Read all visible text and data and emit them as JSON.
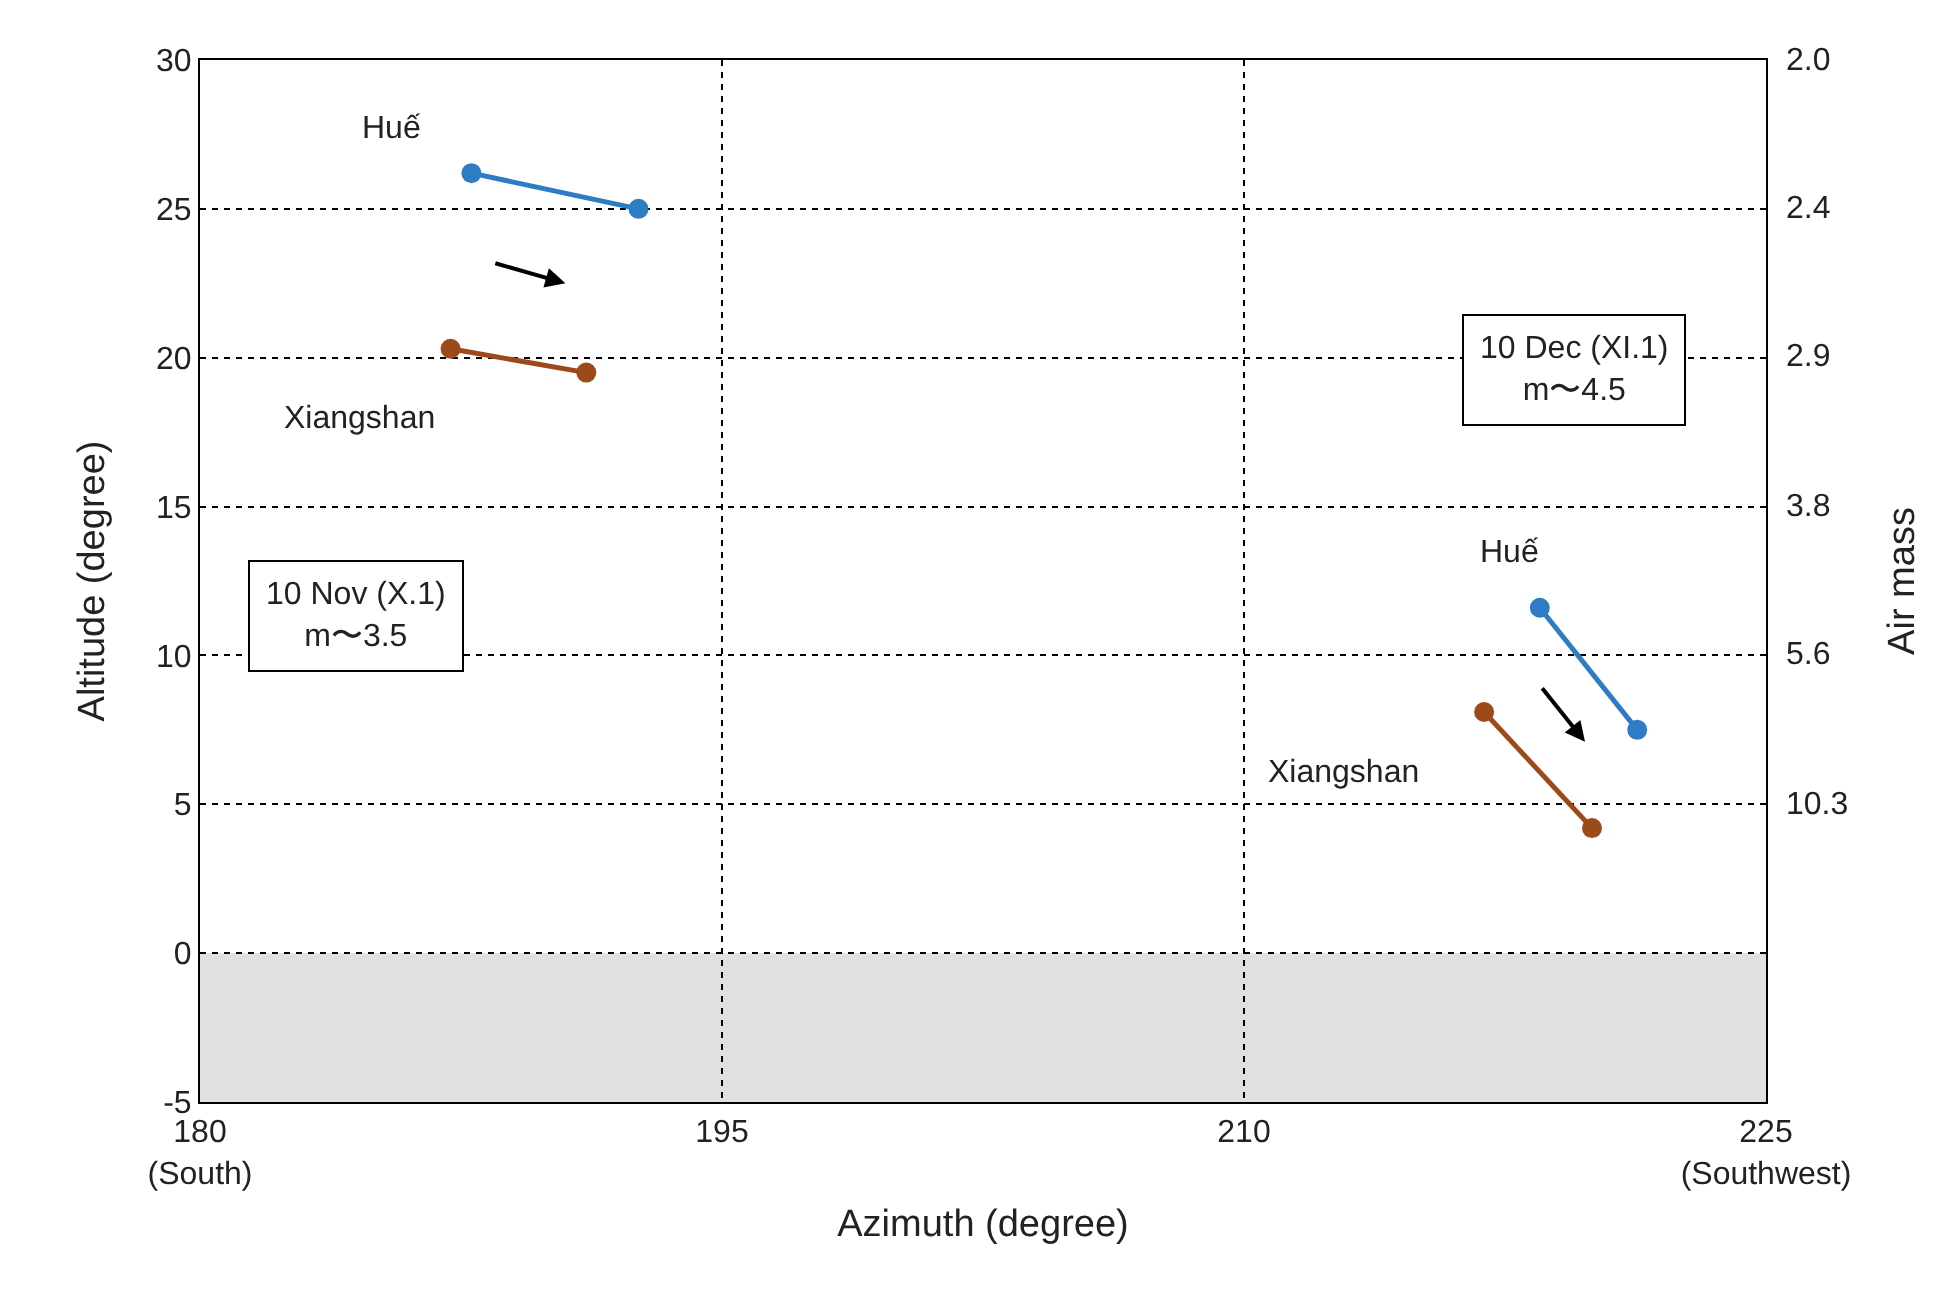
{
  "chart_data": {
    "type": "line",
    "xlabel": "Azimuth (degree)",
    "ylabel": "Altitude (degree)",
    "y2label": "Air mass",
    "xlim": [
      180,
      225
    ],
    "xticks": [
      {
        "value": 180,
        "label": "180\n(South)"
      },
      195,
      210,
      {
        "value": 225,
        "label": "225\n(Southwest)"
      }
    ],
    "ylim": [
      -5,
      30
    ],
    "yticks": [
      -5,
      0,
      5,
      10,
      15,
      20,
      25,
      30
    ],
    "grid": true,
    "legend": false,
    "marker": "circle",
    "line_style": "solid",
    "bands": [
      {
        "axis": "y",
        "from": -5,
        "to": 0,
        "color": "#e0e0e0"
      }
    ],
    "series": [
      {
        "name": "Huế",
        "color": "#2e7dc4",
        "x": [
          187.8,
          192.6
        ],
        "values": [
          26.2,
          25.0
        ]
      },
      {
        "name": "Xiangshan",
        "color": "#9c4a1a",
        "x": [
          187.2,
          191.1
        ],
        "values": [
          20.3,
          19.5
        ]
      },
      {
        "name": "Huế",
        "color": "#2e7dc4",
        "x": [
          218.5,
          221.3
        ],
        "values": [
          11.6,
          7.5
        ]
      },
      {
        "name": "Xiangshan",
        "color": "#9c4a1a",
        "x": [
          216.9,
          220.0
        ],
        "values": [
          8.1,
          4.2
        ]
      }
    ],
    "annotations": [
      "10 Nov (X.1)\nm〜3.5",
      "10 Dec (XI.1)\nm〜4.5",
      "2.0",
      "2.4",
      "2.9",
      "3.8",
      "5.6",
      "10.3"
    ]
  }
}
